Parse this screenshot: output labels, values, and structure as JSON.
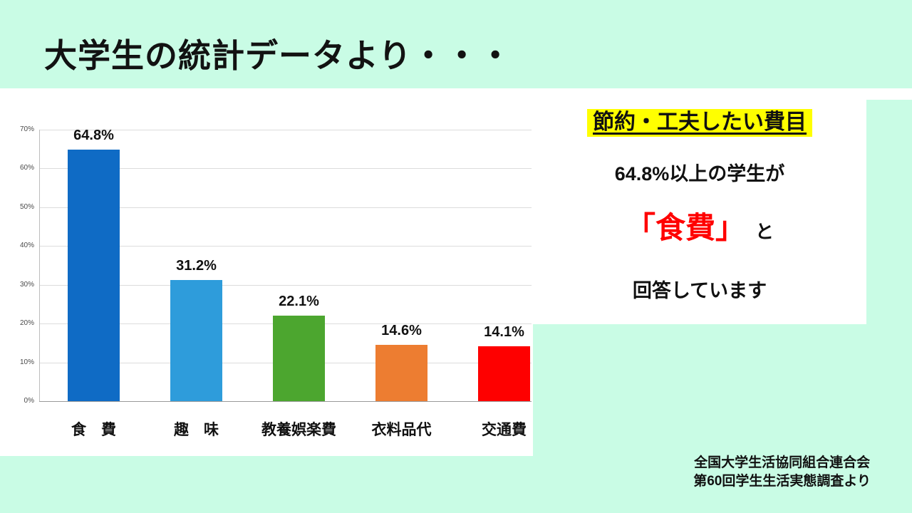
{
  "slide": {
    "title": "大学生の統計データより・・・",
    "bg_color": "#c9fce5",
    "source_line1": "全国大学生活協同組合連合会",
    "source_line2": "第60回学生生活実態調査より"
  },
  "callout": {
    "heading": "節約・工夫したい費目",
    "heading_bg": "#ffff00",
    "line1": "64.8%以上の学生が",
    "highlight": "「食費」",
    "highlight_color": "#ff0000",
    "particle": "と",
    "line2": "回答しています"
  },
  "chart_data": {
    "type": "bar",
    "categories": [
      "食　費",
      "趣　味",
      "教養娯楽費",
      "衣料品代",
      "交通費"
    ],
    "values": [
      64.8,
      31.2,
      22.1,
      14.6,
      14.1
    ],
    "data_labels": [
      "64.8%",
      "31.2%",
      "22.1%",
      "14.6%",
      "14.1%"
    ],
    "bar_colors": [
      "#0f6bc5",
      "#2e9cdb",
      "#4ca62f",
      "#ed7d31",
      "#fe0000"
    ],
    "title": "",
    "xlabel": "",
    "ylabel": "",
    "ylim": [
      0,
      70
    ],
    "ytick_step": 10,
    "ytick_labels": [
      "0%",
      "10%",
      "20%",
      "30%",
      "40%",
      "50%",
      "60%",
      "70%"
    ],
    "grid": true,
    "legend": false
  }
}
